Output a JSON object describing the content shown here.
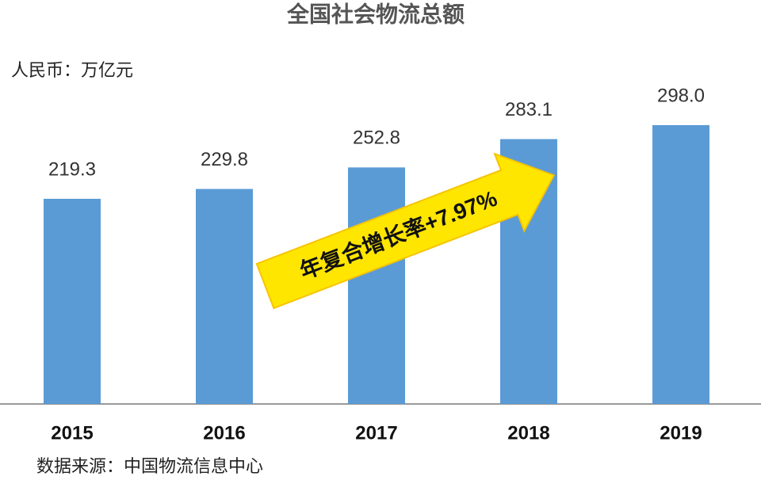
{
  "chart_data": {
    "type": "bar",
    "title": "全国社会物流总额",
    "unit_label": "人民币：万亿元",
    "categories": [
      "2015",
      "2016",
      "2017",
      "2018",
      "2019"
    ],
    "values": [
      219.3,
      229.8,
      252.8,
      283.1,
      298.0
    ],
    "value_labels": [
      "219.3",
      "229.8",
      "252.8",
      "283.1",
      "298.0"
    ],
    "color": "#5b9bd5",
    "annotation": "年复合增长率+7.97%",
    "source": "数据来源：中国物流信息中心"
  }
}
